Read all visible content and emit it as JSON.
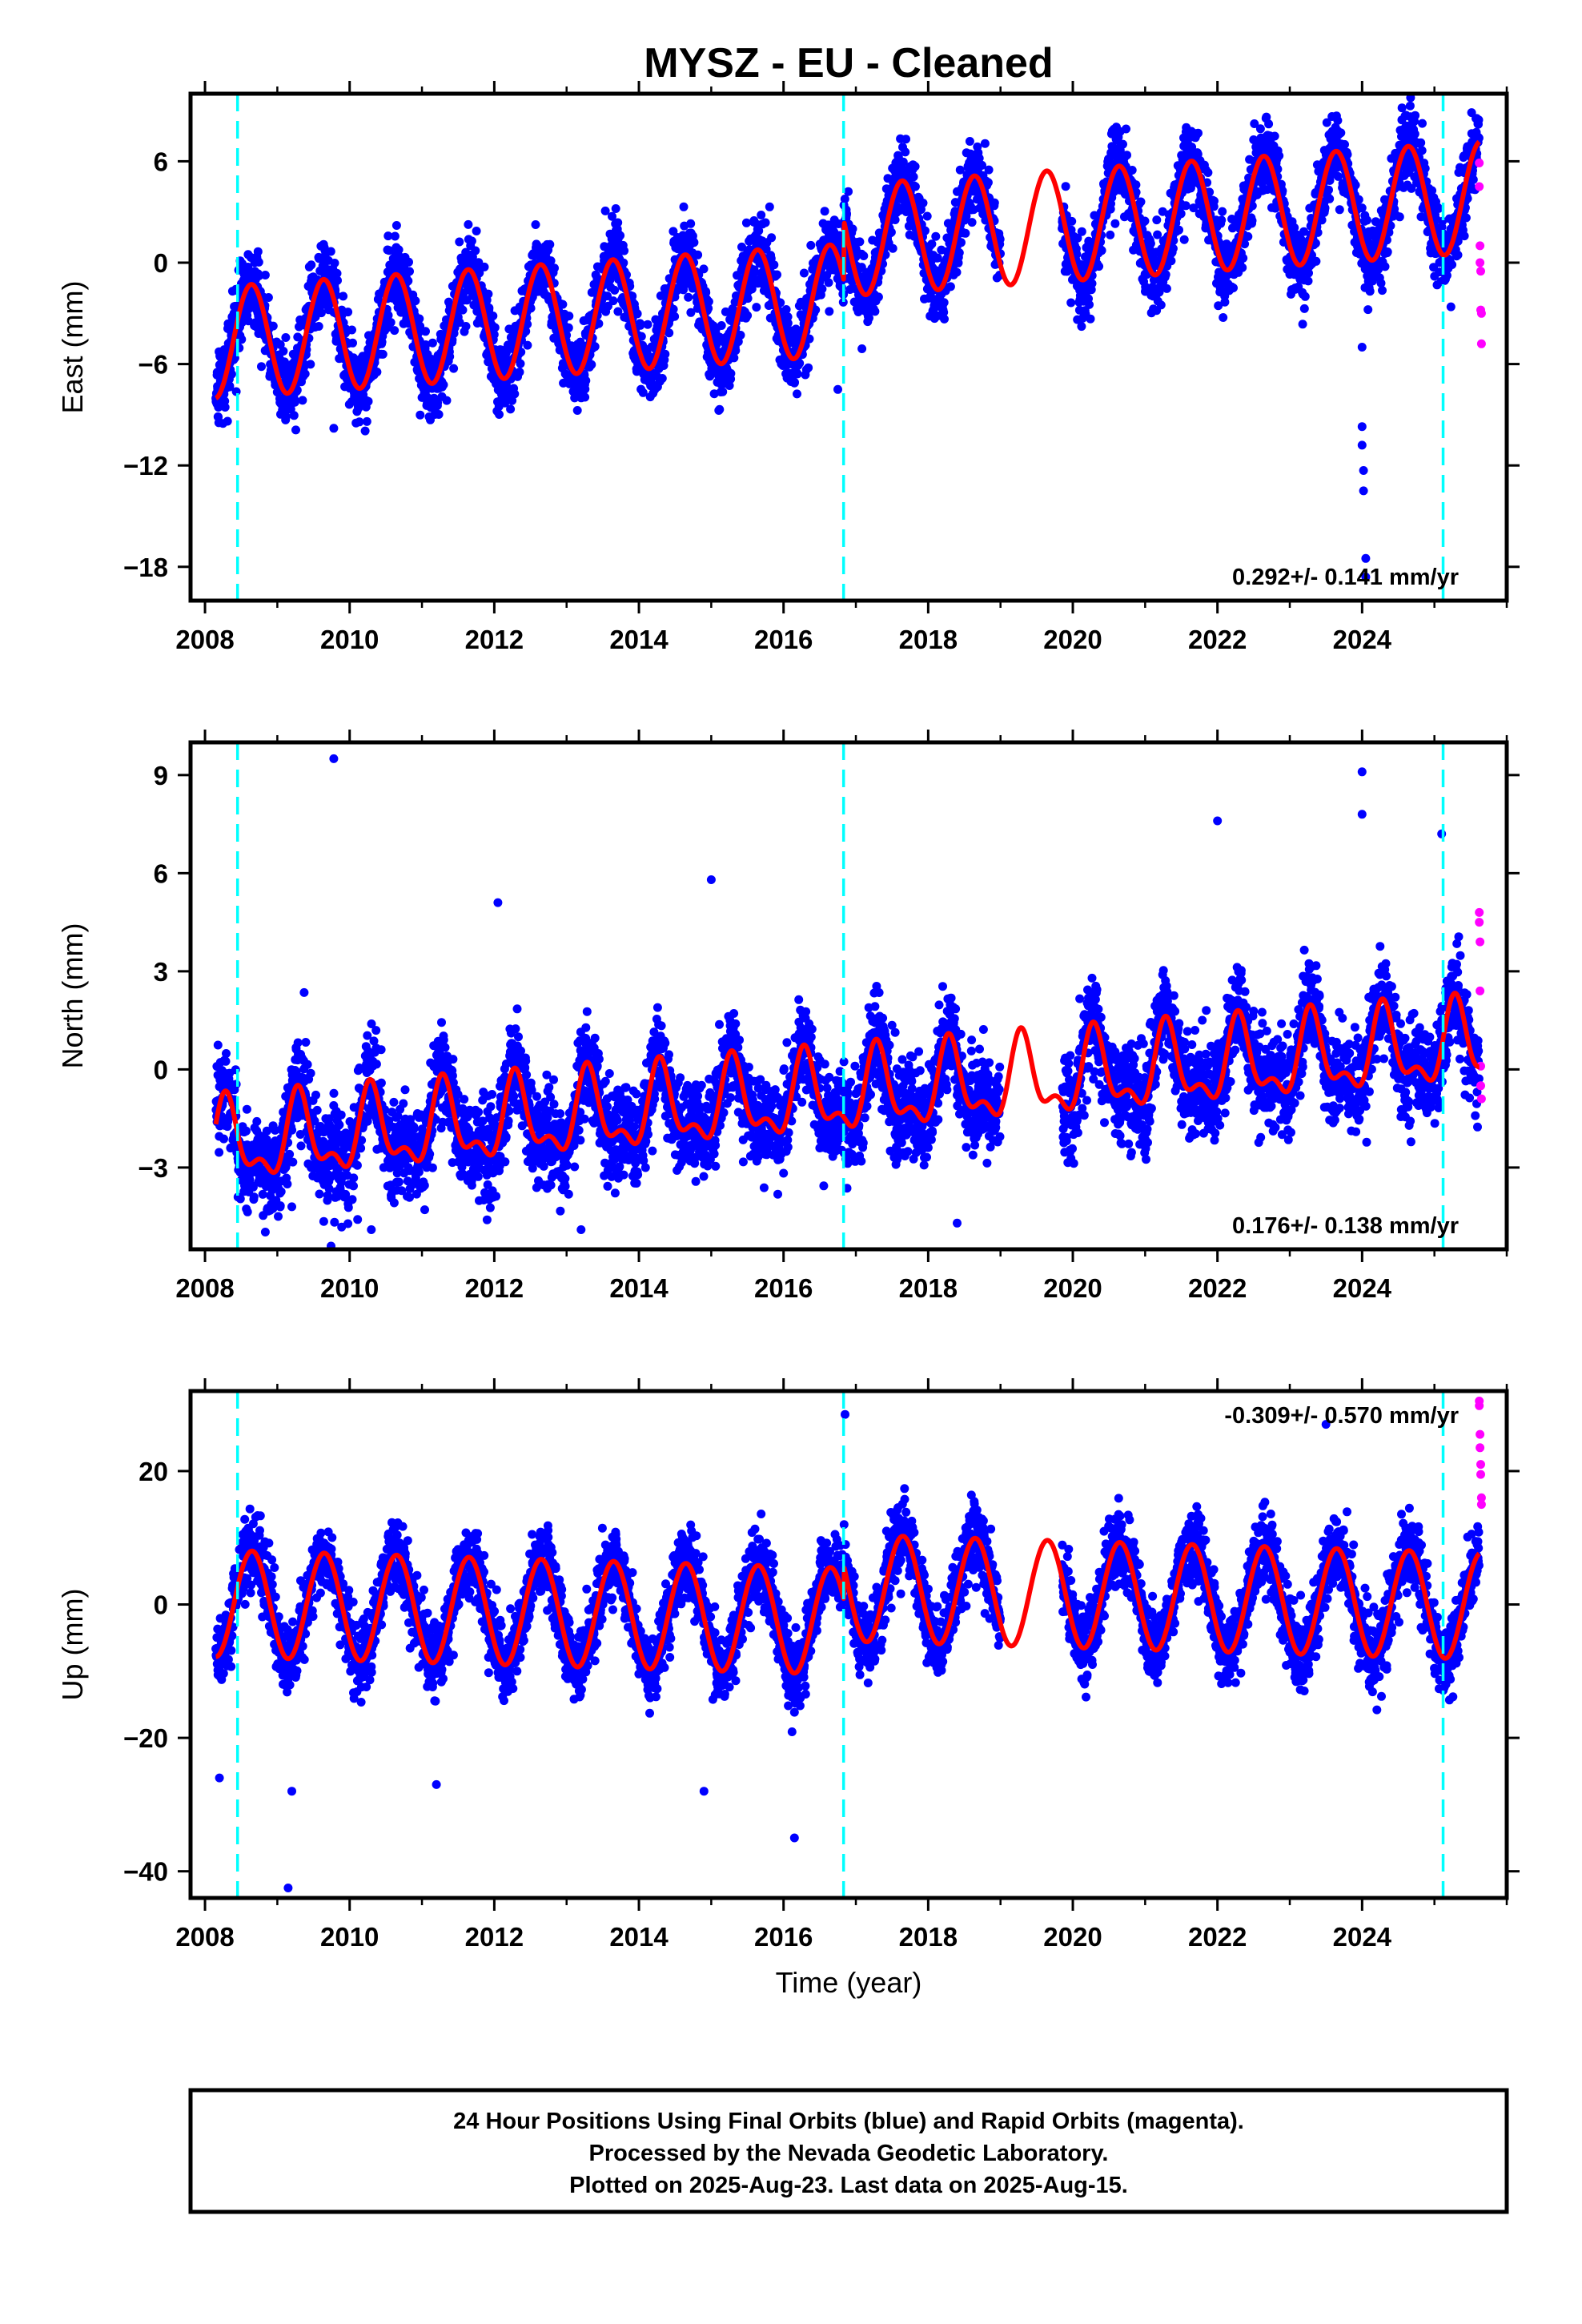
{
  "title": "MYSZ  - EU - Cleaned",
  "xlabel": "Time (year)",
  "footer": {
    "line1": "24 Hour Positions Using Final Orbits (blue) and Rapid Orbits (magenta).",
    "line2": "Processed by the Nevada Geodetic Laboratory.",
    "line3": "Plotted on 2025-Aug-23. Last data on 2025-Aug-15."
  },
  "colors": {
    "final_points": "#0000ff",
    "rapid_points": "#ff00ff",
    "model": "#ff0000",
    "steps": "#00ffff",
    "frame": "#000000"
  },
  "chart_data": [
    {
      "type": "scatter",
      "name": "east",
      "ylabel": "East (mm)",
      "rate_text": "0.292+/- 0.141 mm/yr",
      "rate_position": "bottom-right",
      "xlim": [
        2007.8,
        2026.0
      ],
      "ylim": [
        -20,
        10
      ],
      "xticks": [
        2008,
        2010,
        2012,
        2014,
        2016,
        2018,
        2020,
        2022,
        2024
      ],
      "xtick_labels": [
        "2008",
        "2010",
        "2012",
        "2014",
        "2016",
        "2018",
        "2020",
        "2022",
        "2024"
      ],
      "yticks": [
        6,
        0,
        -6,
        -12,
        -18
      ],
      "ytick_labels": [
        "6",
        "0",
        "−6",
        "−12",
        "−18"
      ],
      "step_lines_x": [
        2008.45,
        2016.83,
        2025.12
      ],
      "data_span": [
        2008.15,
        2025.62
      ],
      "gap": [
        2019.0,
        2019.85
      ],
      "seasonal": {
        "offset": -2.2,
        "rate": 0.292,
        "amplitude": 3.3,
        "phase": 0.39,
        "scatter": 2.0
      },
      "offsets": [
        {
          "x": 2016.83,
          "dy": 3.5
        }
      ],
      "outliers": [
        [
          2008.4,
          -3.0
        ],
        [
          2009.78,
          -9.8
        ],
        [
          2024.0,
          -9.7
        ],
        [
          2024.0,
          -10.8
        ],
        [
          2024.02,
          -12.3
        ],
        [
          2024.02,
          -13.5
        ],
        [
          2024.05,
          -17.5
        ],
        [
          2024.05,
          -18.6
        ],
        [
          2024.0,
          -5.0
        ],
        [
          2016.75,
          -7.5
        ]
      ],
      "rapid_points": [
        [
          2025.62,
          5.9
        ],
        [
          2025.62,
          4.5
        ],
        [
          2025.63,
          1.0
        ],
        [
          2025.63,
          0.0
        ],
        [
          2025.64,
          -0.5
        ],
        [
          2025.64,
          -2.8
        ],
        [
          2025.65,
          -3.0
        ],
        [
          2025.65,
          -4.8
        ]
      ]
    },
    {
      "type": "scatter",
      "name": "north",
      "ylabel": "North (mm)",
      "rate_text": "0.176+/- 0.138 mm/yr",
      "rate_position": "bottom-right",
      "xlim": [
        2007.8,
        2026.0
      ],
      "ylim": [
        -5.5,
        10
      ],
      "xticks": [
        2008,
        2010,
        2012,
        2014,
        2016,
        2018,
        2020,
        2022,
        2024
      ],
      "xtick_labels": [
        "2008",
        "2010",
        "2012",
        "2014",
        "2016",
        "2018",
        "2020",
        "2022",
        "2024"
      ],
      "yticks": [
        9,
        6,
        3,
        0,
        -3
      ],
      "ytick_labels": [
        "9",
        "6",
        "3",
        "0",
        "−3"
      ],
      "step_lines_x": [
        2008.45,
        2016.83,
        2025.12
      ],
      "data_span": [
        2008.15,
        2025.62
      ],
      "gap": [
        2019.0,
        2019.85
      ],
      "seasonal": {
        "offset": -0.8,
        "rate": 0.176,
        "amplitude": 1.1,
        "phase": 0.05,
        "scatter": 1.3
      },
      "offsets": [],
      "outliers": [
        [
          2009.78,
          9.5
        ],
        [
          2024.0,
          9.1
        ],
        [
          2024.0,
          7.8
        ],
        [
          2022.0,
          7.6
        ],
        [
          2025.1,
          7.2
        ],
        [
          2015.0,
          5.8
        ],
        [
          2012.05,
          5.1
        ],
        [
          2009.2,
          -4.2
        ],
        [
          2010.3,
          -4.9
        ],
        [
          2011.9,
          -4.6
        ],
        [
          2013.2,
          -4.9
        ],
        [
          2018.4,
          -4.7
        ]
      ],
      "rapid_points": [
        [
          2025.62,
          4.8
        ],
        [
          2025.62,
          4.5
        ],
        [
          2025.63,
          3.9
        ],
        [
          2025.63,
          2.4
        ],
        [
          2025.64,
          0.1
        ],
        [
          2025.64,
          -0.5
        ],
        [
          2025.65,
          -0.9
        ]
      ]
    },
    {
      "type": "scatter",
      "name": "up",
      "ylabel": "Up (mm)",
      "rate_text": "-0.309+/- 0.570 mm/yr",
      "rate_position": "top-right",
      "xlim": [
        2007.8,
        2026.0
      ],
      "ylim": [
        -44,
        32
      ],
      "xticks": [
        2008,
        2010,
        2012,
        2014,
        2016,
        2018,
        2020,
        2022,
        2024
      ],
      "xtick_labels": [
        "2008",
        "2010",
        "2012",
        "2014",
        "2016",
        "2018",
        "2020",
        "2022",
        "2024"
      ],
      "yticks": [
        20,
        0,
        -20,
        -40
      ],
      "ytick_labels": [
        "20",
        "0",
        "−20",
        "−40"
      ],
      "step_lines_x": [
        2008.45,
        2016.83,
        2025.12
      ],
      "data_span": [
        2008.15,
        2025.62
      ],
      "gap": [
        2019.0,
        2019.85
      ],
      "seasonal": {
        "offset": -2.5,
        "rate": -0.309,
        "amplitude": 8.0,
        "phase": 0.4,
        "scatter": 5.0
      },
      "offsets": [
        {
          "x": 2016.83,
          "dy": 5.0
        }
      ],
      "outliers": [
        [
          2009.15,
          -42.5
        ],
        [
          2016.15,
          -35.0
        ],
        [
          2016.85,
          28.5
        ],
        [
          2023.5,
          27.0
        ],
        [
          2008.2,
          -26.0
        ],
        [
          2009.2,
          -28.0
        ],
        [
          2014.9,
          -28.0
        ],
        [
          2011.2,
          -27.0
        ]
      ],
      "rapid_points": [
        [
          2025.62,
          30.5
        ],
        [
          2025.62,
          29.8
        ],
        [
          2025.63,
          25.5
        ],
        [
          2025.63,
          23.5
        ],
        [
          2025.64,
          21.0
        ],
        [
          2025.64,
          19.5
        ],
        [
          2025.65,
          16.0
        ],
        [
          2025.65,
          15.0
        ]
      ]
    }
  ]
}
